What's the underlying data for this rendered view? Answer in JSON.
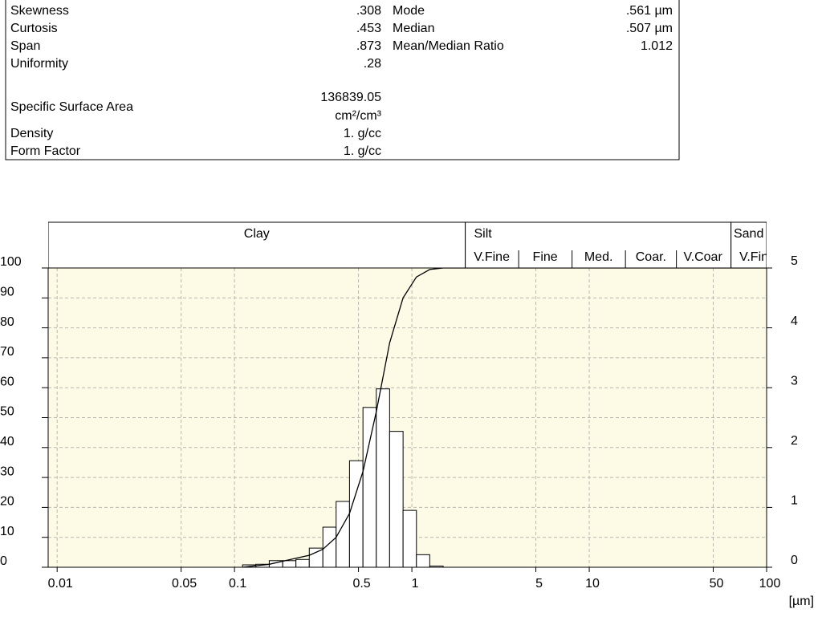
{
  "stats": {
    "rows": [
      {
        "label": "Skewness",
        "value": ".308",
        "label2": "Mode",
        "value2": ".561 µm"
      },
      {
        "label": "Curtosis",
        "value": ".453",
        "label2": "Median",
        "value2": ".507 µm"
      },
      {
        "label": "Span",
        "value": ".873",
        "label2": "Mean/Median Ratio",
        "value2": "1.012"
      },
      {
        "label": "Uniformity",
        "value": ".28"
      },
      {
        "label": "Specific Surface Area",
        "value": "136839.05",
        "unit": "cm²/cm³"
      },
      {
        "label": "Density",
        "value": "1. g/cc"
      },
      {
        "label": "Form Factor",
        "value": "1. g/cc"
      }
    ]
  },
  "chart_data": {
    "type": "histogram",
    "xlabel": "[µm]",
    "log_x": true,
    "grid": true,
    "xlim": [
      0.0089,
      100
    ],
    "xticks": [
      0.01,
      0.05,
      0.1,
      0.5,
      1,
      5,
      10,
      50,
      100
    ],
    "ylim": [
      0,
      100
    ],
    "yticks": [
      0,
      10,
      20,
      30,
      40,
      50,
      60,
      70,
      80,
      90,
      100
    ],
    "y2lim": [
      0,
      5
    ],
    "y2ticks": [
      0,
      1,
      2,
      3,
      4,
      5
    ],
    "bins": [
      0.111,
      0.132,
      0.157,
      0.187,
      0.222,
      0.264,
      0.315,
      0.374,
      0.445,
      0.53,
      0.63,
      0.749,
      0.892,
      1.061,
      1.261,
      1.501
    ],
    "counts": [
      0.04,
      0.05,
      0.11,
      0.11,
      0.13,
      0.32,
      0.67,
      1.1,
      1.78,
      2.67,
      2.98,
      2.27,
      0.95,
      0.21,
      0.02
    ],
    "counts_axis": "y2",
    "bar_color": "#ffffff",
    "cumulative": {
      "x": [
        0.111,
        0.132,
        0.157,
        0.187,
        0.222,
        0.264,
        0.315,
        0.374,
        0.445,
        0.53,
        0.63,
        0.749,
        0.892,
        1.061,
        1.261,
        1.501,
        100
      ],
      "values": [
        0,
        0.5,
        1,
        2,
        3,
        4,
        6,
        10,
        18,
        32,
        52,
        75,
        90,
        97,
        99.5,
        100,
        100
      ],
      "color": "#000000"
    },
    "background": "#fdfbe6",
    "bands": [
      {
        "label": "Clay",
        "range": [
          0.0089,
          2
        ]
      },
      {
        "label": "Silt",
        "range": [
          2,
          63
        ],
        "sub": [
          {
            "label": "V.Fine",
            "range": [
              2,
              4
            ]
          },
          {
            "label": "Fine",
            "range": [
              4,
              8
            ]
          },
          {
            "label": "Med.",
            "range": [
              8,
              16
            ]
          },
          {
            "label": "Coar.",
            "range": [
              16,
              31
            ]
          },
          {
            "label": "V.Coar",
            "range": [
              31,
              63
            ]
          }
        ]
      },
      {
        "label": "Sand",
        "range": [
          63,
          125
        ],
        "sub": [
          {
            "label": "V.Fine",
            "range": [
              63,
              125
            ]
          }
        ]
      }
    ]
  }
}
